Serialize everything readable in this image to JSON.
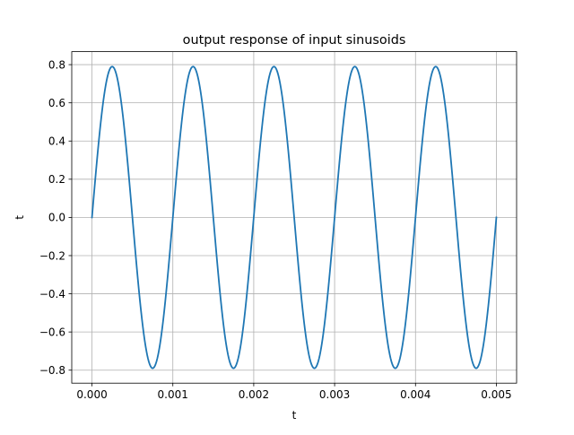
{
  "chart_data": {
    "type": "line",
    "title": "output response of input sinusoids",
    "xlabel": "t",
    "ylabel": "t",
    "xlim": [
      -0.00025,
      0.00525
    ],
    "ylim": [
      -0.868,
      0.868
    ],
    "xticks": [
      0.0,
      0.001,
      0.002,
      0.003,
      0.004,
      0.005
    ],
    "xtick_labels": [
      "0.000",
      "0.001",
      "0.002",
      "0.003",
      "0.004",
      "0.005"
    ],
    "yticks": [
      -0.8,
      -0.6,
      -0.4,
      -0.2,
      0.0,
      0.2,
      0.4,
      0.6,
      0.8
    ],
    "ytick_labels": [
      "−0.8",
      "−0.6",
      "−0.4",
      "−0.2",
      "0.0",
      "0.2",
      "0.4",
      "0.6",
      "0.8"
    ],
    "grid": true,
    "series": [
      {
        "color": "#1f77b4",
        "function": {
          "kind": "sine",
          "amplitude": 0.79,
          "frequency_hz": 1000,
          "t_start": 0.0,
          "t_end": 0.005
        }
      }
    ]
  }
}
